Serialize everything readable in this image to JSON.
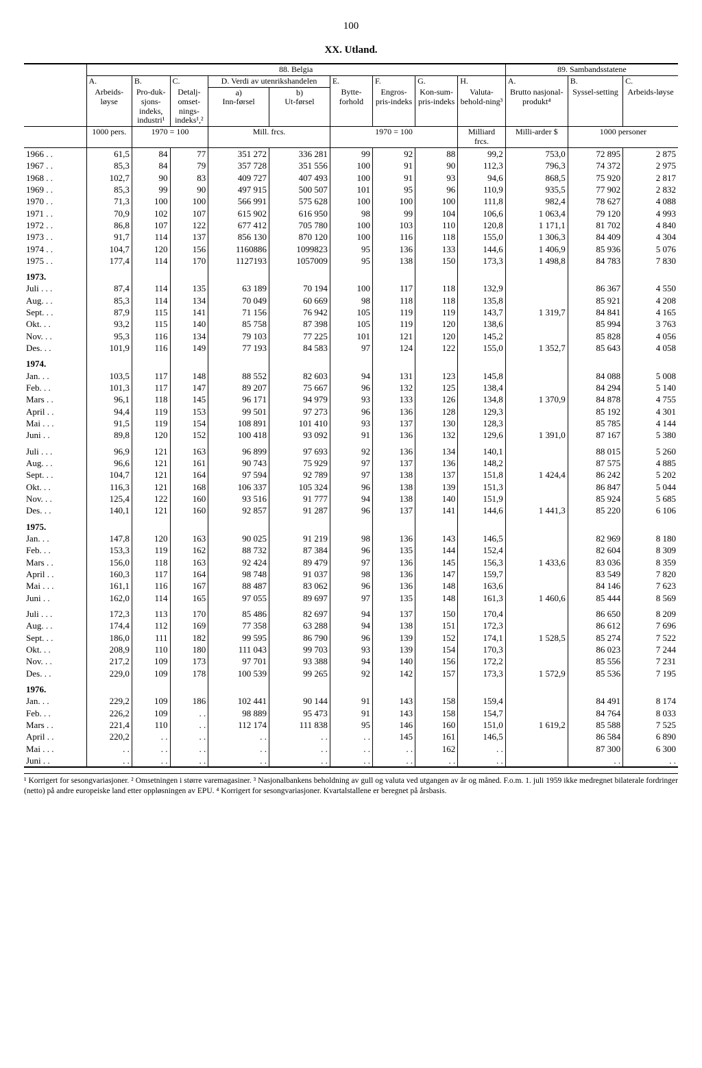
{
  "page_number": "100",
  "title_line": "XX.  Utland.",
  "section_88": "88.  Belgia",
  "section_89": "89.  Sambandsstatene",
  "col_headers": {
    "A_lbl": "A.",
    "A_sub": "Arbeids-løyse",
    "B_lbl": "B.",
    "B_sub": "Pro-duk-sjons-indeks, industri¹",
    "C_lbl": "C.",
    "C_sub": "Detalj-omset-nings-indeks¹,²",
    "D_lbl": "D.  Verdi av utenrikshandelen",
    "D_a": "a)",
    "D_a_sub": "Inn-førsel",
    "D_b": "b)",
    "D_b_sub": "Ut-førsel",
    "E_lbl": "E.",
    "E_sub": "Bytte-forhold",
    "F_lbl": "F.",
    "F_sub": "Engros-pris-indeks",
    "G_lbl": "G.",
    "G_sub": "Kon-sum-pris-indeks",
    "H_lbl": "H.",
    "H_sub": "Valuta-behold-ning³",
    "A2_lbl": "A.",
    "A2_sub": "Brutto nasjonal-produkt⁴",
    "B2_lbl": "B.",
    "B2_sub": "Syssel-setting",
    "C2_lbl": "C.",
    "C2_sub": "Arbeids-løyse"
  },
  "units": {
    "u1": "1000 pers.",
    "u2": "1970 = 100",
    "u3": "Mill. frcs.",
    "u4": "1970 = 100",
    "u5": "Milliard frcs.",
    "u6": "Milli-arder $",
    "u7": "1000 personer"
  },
  "rows": [
    {
      "label": "1966 . .",
      "v": [
        "61,5",
        "84",
        "77",
        "351 272",
        "336 281",
        "99",
        "92",
        "88",
        "99,2",
        "753,0",
        "72 895",
        "2 875"
      ]
    },
    {
      "label": "1967 . .",
      "v": [
        "85,3",
        "84",
        "79",
        "357 728",
        "351 556",
        "100",
        "91",
        "90",
        "112,3",
        "796,3",
        "74 372",
        "2 975"
      ]
    },
    {
      "label": "1968 . .",
      "v": [
        "102,7",
        "90",
        "83",
        "409 727",
        "407 493",
        "100",
        "91",
        "93",
        "94,6",
        "868,5",
        "75 920",
        "2 817"
      ]
    },
    {
      "label": "1969 . .",
      "v": [
        "85,3",
        "99",
        "90",
        "497 915",
        "500 507",
        "101",
        "95",
        "96",
        "110,9",
        "935,5",
        "77 902",
        "2 832"
      ]
    },
    {
      "label": "1970 . .",
      "v": [
        "71,3",
        "100",
        "100",
        "566 991",
        "575 628",
        "100",
        "100",
        "100",
        "111,8",
        "982,4",
        "78 627",
        "4 088"
      ]
    },
    {
      "label": "1971 . .",
      "v": [
        "70,9",
        "102",
        "107",
        "615 902",
        "616 950",
        "98",
        "99",
        "104",
        "106,6",
        "1 063,4",
        "79 120",
        "4 993"
      ]
    },
    {
      "label": "1972 . .",
      "v": [
        "86,8",
        "107",
        "122",
        "677 412",
        "705 780",
        "100",
        "103",
        "110",
        "120,8",
        "1 171,1",
        "81 702",
        "4 840"
      ]
    },
    {
      "label": "1973 . .",
      "v": [
        "91,7",
        "114",
        "137",
        "856 130",
        "870 120",
        "100",
        "116",
        "118",
        "155,0",
        "1 306,3",
        "84 409",
        "4 304"
      ]
    },
    {
      "label": "1974 . .",
      "v": [
        "104,7",
        "120",
        "156",
        "1160886",
        "1099823",
        "95",
        "136",
        "133",
        "144,6",
        "1 406,9",
        "85 936",
        "5 076"
      ]
    },
    {
      "label": "1975 . .",
      "v": [
        "177,4",
        "114",
        "170",
        "1127193",
        "1057009",
        "95",
        "138",
        "150",
        "173,3",
        "1 498,8",
        "84 783",
        "7 830"
      ]
    }
  ],
  "year1973": "1973.",
  "rows1973": [
    {
      "label": "Juli . . .",
      "v": [
        "87,4",
        "114",
        "135",
        "63 189",
        "70 194",
        "100",
        "117",
        "118",
        "132,9",
        "",
        "86 367",
        "4 550"
      ]
    },
    {
      "label": "Aug. . .",
      "v": [
        "85,3",
        "114",
        "134",
        "70 049",
        "60 669",
        "98",
        "118",
        "118",
        "135,8",
        "",
        "85 921",
        "4 208"
      ]
    },
    {
      "label": "Sept. . .",
      "v": [
        "87,9",
        "115",
        "141",
        "71 156",
        "76 942",
        "105",
        "119",
        "119",
        "143,7",
        "1 319,7",
        "84 841",
        "4 165"
      ]
    },
    {
      "label": "Okt. . .",
      "v": [
        "93,2",
        "115",
        "140",
        "85 758",
        "87 398",
        "105",
        "119",
        "120",
        "138,6",
        "",
        "85 994",
        "3 763"
      ]
    },
    {
      "label": "Nov. . .",
      "v": [
        "95,3",
        "116",
        "134",
        "79 103",
        "77 225",
        "101",
        "121",
        "120",
        "145,2",
        "",
        "85 828",
        "4 056"
      ]
    },
    {
      "label": "Des. . .",
      "v": [
        "101,9",
        "116",
        "149",
        "77 193",
        "84 583",
        "97",
        "124",
        "122",
        "155,0",
        "1 352,7",
        "85 643",
        "4 058"
      ]
    }
  ],
  "year1974": "1974.",
  "rows1974a": [
    {
      "label": "Jan. . .",
      "v": [
        "103,5",
        "117",
        "148",
        "88 552",
        "82 603",
        "94",
        "131",
        "123",
        "145,8",
        "",
        "84 088",
        "5 008"
      ]
    },
    {
      "label": "Feb. . .",
      "v": [
        "101,3",
        "117",
        "147",
        "89 207",
        "75 667",
        "96",
        "132",
        "125",
        "138,4",
        "",
        "84 294",
        "5 140"
      ]
    },
    {
      "label": "Mars . .",
      "v": [
        "96,1",
        "118",
        "145",
        "96 171",
        "94 979",
        "93",
        "133",
        "126",
        "134,8",
        "1 370,9",
        "84 878",
        "4 755"
      ]
    },
    {
      "label": "April . .",
      "v": [
        "94,4",
        "119",
        "153",
        "99 501",
        "97 273",
        "96",
        "136",
        "128",
        "129,3",
        "",
        "85 192",
        "4 301"
      ]
    },
    {
      "label": "Mai . . .",
      "v": [
        "91,5",
        "119",
        "154",
        "108 891",
        "101 410",
        "93",
        "137",
        "130",
        "128,3",
        "",
        "85 785",
        "4 144"
      ]
    },
    {
      "label": "Juni . .",
      "v": [
        "89,8",
        "120",
        "152",
        "100 418",
        "93 092",
        "91",
        "136",
        "132",
        "129,6",
        "1 391,0",
        "87 167",
        "5 380"
      ]
    }
  ],
  "rows1974b": [
    {
      "label": "Juli . . .",
      "v": [
        "96,9",
        "121",
        "163",
        "96 899",
        "97 693",
        "92",
        "136",
        "134",
        "140,1",
        "",
        "88 015",
        "5 260"
      ]
    },
    {
      "label": "Aug. . .",
      "v": [
        "96,6",
        "121",
        "161",
        "90 743",
        "75 929",
        "97",
        "137",
        "136",
        "148,2",
        "",
        "87 575",
        "4 885"
      ]
    },
    {
      "label": "Sept. . .",
      "v": [
        "104,7",
        "121",
        "164",
        "97 594",
        "92 789",
        "97",
        "138",
        "137",
        "151,8",
        "1 424,4",
        "86 242",
        "5 202"
      ]
    },
    {
      "label": "Okt. . .",
      "v": [
        "116,3",
        "121",
        "168",
        "106 337",
        "105 324",
        "96",
        "138",
        "139",
        "151,3",
        "",
        "86 847",
        "5 044"
      ]
    },
    {
      "label": "Nov. . .",
      "v": [
        "125,4",
        "122",
        "160",
        "93 516",
        "91 777",
        "94",
        "138",
        "140",
        "151,9",
        "",
        "85 924",
        "5 685"
      ]
    },
    {
      "label": "Des. . .",
      "v": [
        "140,1",
        "121",
        "160",
        "92 857",
        "91 287",
        "96",
        "137",
        "141",
        "144,6",
        "1 441,3",
        "85 220",
        "6 106"
      ]
    }
  ],
  "year1975": "1975.",
  "rows1975a": [
    {
      "label": "Jan. . .",
      "v": [
        "147,8",
        "120",
        "163",
        "90 025",
        "91 219",
        "98",
        "136",
        "143",
        "146,5",
        "",
        "82 969",
        "8 180"
      ]
    },
    {
      "label": "Feb. . .",
      "v": [
        "153,3",
        "119",
        "162",
        "88 732",
        "87 384",
        "96",
        "135",
        "144",
        "152,4",
        "",
        "82 604",
        "8 309"
      ]
    },
    {
      "label": "Mars . .",
      "v": [
        "156,0",
        "118",
        "163",
        "92 424",
        "89 479",
        "97",
        "136",
        "145",
        "156,3",
        "1 433,6",
        "83 036",
        "8 359"
      ]
    },
    {
      "label": "April . .",
      "v": [
        "160,3",
        "117",
        "164",
        "98 748",
        "91 037",
        "98",
        "136",
        "147",
        "159,7",
        "",
        "83 549",
        "7 820"
      ]
    },
    {
      "label": "Mai . . .",
      "v": [
        "161,1",
        "116",
        "167",
        "88 487",
        "83 062",
        "96",
        "136",
        "148",
        "163,6",
        "",
        "84 146",
        "7 623"
      ]
    },
    {
      "label": "Juni . .",
      "v": [
        "162,0",
        "114",
        "165",
        "97 055",
        "89 697",
        "97",
        "135",
        "148",
        "161,3",
        "1 460,6",
        "85 444",
        "8 569"
      ]
    }
  ],
  "rows1975b": [
    {
      "label": "Juli . . .",
      "v": [
        "172,3",
        "113",
        "170",
        "85 486",
        "82 697",
        "94",
        "137",
        "150",
        "170,4",
        "",
        "86 650",
        "8 209"
      ]
    },
    {
      "label": "Aug. . .",
      "v": [
        "174,4",
        "112",
        "169",
        "77 358",
        "63 288",
        "94",
        "138",
        "151",
        "172,3",
        "",
        "86 612",
        "7 696"
      ]
    },
    {
      "label": "Sept. . .",
      "v": [
        "186,0",
        "111",
        "182",
        "99 595",
        "86 790",
        "96",
        "139",
        "152",
        "174,1",
        "1 528,5",
        "85 274",
        "7 522"
      ]
    },
    {
      "label": "Okt. . .",
      "v": [
        "208,9",
        "110",
        "180",
        "111 043",
        "99 703",
        "93",
        "139",
        "154",
        "170,3",
        "",
        "86 023",
        "7 244"
      ]
    },
    {
      "label": "Nov. . .",
      "v": [
        "217,2",
        "109",
        "173",
        "97 701",
        "93 388",
        "94",
        "140",
        "156",
        "172,2",
        "",
        "85 556",
        "7 231"
      ]
    },
    {
      "label": "Des. . .",
      "v": [
        "229,0",
        "109",
        "178",
        "100 539",
        "99 265",
        "92",
        "142",
        "157",
        "173,3",
        "1 572,9",
        "85 536",
        "7 195"
      ]
    }
  ],
  "year1976": "1976.",
  "rows1976": [
    {
      "label": "Jan. . .",
      "v": [
        "229,2",
        "109",
        "186",
        "102 441",
        "90 144",
        "91",
        "143",
        "158",
        "159,4",
        "",
        "84 491",
        "8 174"
      ]
    },
    {
      "label": "Feb. . .",
      "v": [
        "226,2",
        "109",
        ". .",
        "98 889",
        "95 473",
        "91",
        "143",
        "158",
        "154,7",
        "",
        "84 764",
        "8 033"
      ]
    },
    {
      "label": "Mars . .",
      "v": [
        "221,4",
        "110",
        ". .",
        "112 174",
        "111 838",
        "95",
        "146",
        "160",
        "151,0",
        "1 619,2",
        "85 588",
        "7 525"
      ]
    },
    {
      "label": "April . .",
      "v": [
        "220,2",
        ". .",
        ". .",
        ". .",
        ". .",
        ". .",
        "145",
        "161",
        "146,5",
        "",
        "86 584",
        "6 890"
      ]
    },
    {
      "label": "Mai . . .",
      "v": [
        ". .",
        ". .",
        ". .",
        ". .",
        ". .",
        ". .",
        ". .",
        "162",
        ". .",
        "",
        "87 300",
        "6 300"
      ]
    },
    {
      "label": "Juni . .",
      "v": [
        ". .",
        ". .",
        ". .",
        ". .",
        ". .",
        ". .",
        ". .",
        ". .",
        ". .",
        "",
        ". .",
        ". ."
      ]
    }
  ],
  "footnote": "¹ Korrigert for sesongvariasjoner.  ² Omsetningen i større varemagasiner.  ³ Nasjonalbankens beholdning av gull og valuta ved utgangen av år og måned.  F.o.m. 1. juli 1959 ikke medregnet bilaterale fordringer (netto) på andre europeiske land etter oppløsningen av EPU.  ⁴ Korrigert for sesongvariasjoner. Kvartalstallene er beregnet på årsbasis."
}
